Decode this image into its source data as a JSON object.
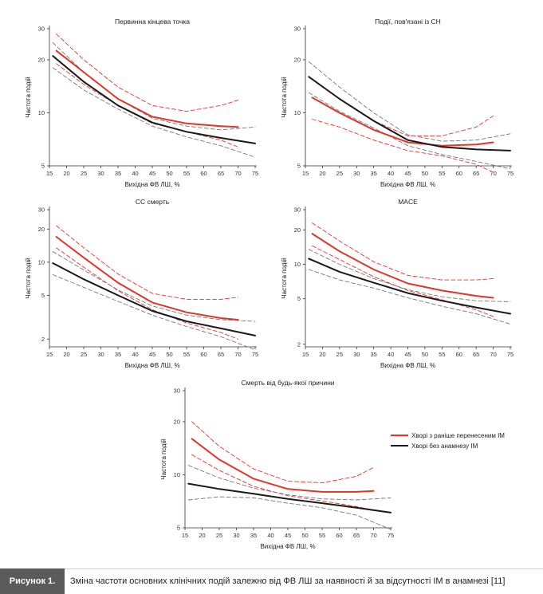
{
  "figure": {
    "label": "Рисунок 1.",
    "caption": "Зміна частоти основних клінічних подій залежно від ФВ ЛШ за наявності й за відсутності ІМ в анамнезі [11]",
    "legend": [
      {
        "label": "Хворі з раніше перенесеним ІМ",
        "color": "#e0352b"
      },
      {
        "label": "Хворі без анамнезу ІМ",
        "color": "#1a1a1a"
      }
    ]
  },
  "chart_data": [
    {
      "type": "line",
      "title": "Первинна кінцева точка",
      "xlabel": "Вихідна ФВ ЛШ, %",
      "ylabel": "Частота подій",
      "xlim": [
        15,
        75
      ],
      "ylim": [
        5,
        30
      ],
      "y_scale": "log",
      "x_ticks": [
        15,
        20,
        25,
        30,
        35,
        40,
        45,
        50,
        55,
        60,
        65,
        70,
        75
      ],
      "y_ticks": [
        5,
        10,
        20,
        30
      ],
      "series": [
        {
          "name": "Хворі з раніше перенесеним ІМ",
          "color": "#e0352b",
          "style": "solid",
          "x": [
            17,
            25,
            35,
            45,
            55,
            65,
            70
          ],
          "y": [
            22.5,
            17,
            12,
            9.5,
            8.7,
            8.4,
            8.3
          ]
        },
        {
          "color": "#e0352b",
          "style": "dashed",
          "x": [
            17,
            25,
            35,
            45,
            55,
            65,
            70
          ],
          "y": [
            28,
            20,
            14,
            11,
            10.2,
            11,
            11.8
          ]
        },
        {
          "color": "#e0352b",
          "style": "dashed",
          "x": [
            17,
            25,
            35,
            45,
            55,
            65,
            70
          ],
          "y": [
            19,
            14.5,
            11,
            8.7,
            7.8,
            7,
            6.4
          ]
        },
        {
          "name": "Хворі без анамнезу ІМ",
          "color": "#1a1a1a",
          "style": "solid",
          "x": [
            16,
            25,
            35,
            45,
            55,
            65,
            75
          ],
          "y": [
            21,
            15,
            11,
            8.8,
            7.8,
            7.2,
            6.7
          ]
        },
        {
          "color": "#777777",
          "style": "dashed",
          "x": [
            16,
            25,
            35,
            45,
            55,
            65,
            75
          ],
          "y": [
            25,
            17,
            12,
            9.3,
            8.4,
            8,
            8.3
          ]
        },
        {
          "color": "#777777",
          "style": "dashed",
          "x": [
            16,
            25,
            35,
            45,
            55,
            65,
            75
          ],
          "y": [
            18,
            13.5,
            10.5,
            8.4,
            7.3,
            6.5,
            5.6
          ]
        }
      ]
    },
    {
      "type": "line",
      "title": "Події, пов'язані із СН",
      "xlabel": "Вихідна ФВ ЛШ, %",
      "ylabel": "Частота подій",
      "xlim": [
        15,
        75
      ],
      "ylim": [
        5,
        30
      ],
      "y_scale": "log",
      "x_ticks": [
        15,
        20,
        25,
        30,
        35,
        40,
        45,
        50,
        55,
        60,
        65,
        70,
        75
      ],
      "y_ticks": [
        5,
        10,
        20,
        30
      ],
      "series": [
        {
          "name": "Хворі з раніше перенесеним ІМ",
          "color": "#e0352b",
          "style": "solid",
          "x": [
            17,
            25,
            35,
            45,
            55,
            65,
            70
          ],
          "y": [
            12.2,
            10,
            8,
            6.8,
            6.5,
            6.6,
            6.8
          ]
        },
        {
          "color": "#e0352b",
          "style": "dashed",
          "x": [
            17,
            25,
            35,
            45,
            55,
            65,
            70
          ],
          "y": [
            15.5,
            12,
            9,
            7.4,
            7.4,
            8.3,
            9.6
          ]
        },
        {
          "color": "#e0352b",
          "style": "dashed",
          "x": [
            17,
            25,
            35,
            45,
            55,
            65,
            70
          ],
          "y": [
            9.2,
            8.3,
            7,
            6.1,
            5.7,
            5.1,
            4.6
          ]
        },
        {
          "name": "Хворі без анамнезу ІМ",
          "color": "#1a1a1a",
          "style": "solid",
          "x": [
            16,
            25,
            35,
            45,
            55,
            65,
            75
          ],
          "y": [
            16,
            12,
            9,
            7,
            6.4,
            6.2,
            6.1
          ]
        },
        {
          "color": "#777777",
          "style": "dashed",
          "x": [
            16,
            25,
            35,
            45,
            55,
            65,
            75
          ],
          "y": [
            19.5,
            14,
            10,
            7.5,
            6.9,
            7.0,
            7.6
          ]
        },
        {
          "color": "#777777",
          "style": "dashed",
          "x": [
            16,
            25,
            35,
            45,
            55,
            65,
            75
          ],
          "y": [
            13,
            10.2,
            8.2,
            6.5,
            5.8,
            5.3,
            4.8
          ]
        }
      ]
    },
    {
      "type": "line",
      "title": "СС смерть",
      "xlabel": "Вихідна ФВ ЛШ, %",
      "ylabel": "Частота подій",
      "xlim": [
        15,
        75
      ],
      "ylim": [
        1.7,
        30
      ],
      "y_scale": "log",
      "x_ticks": [
        15,
        20,
        25,
        30,
        35,
        40,
        45,
        50,
        55,
        60,
        65,
        70,
        75
      ],
      "y_ticks": [
        2,
        5,
        10,
        20,
        30
      ],
      "series": [
        {
          "name": "Хворі з раніше перенесеним ІМ",
          "color": "#e0352b",
          "style": "solid",
          "x": [
            17,
            25,
            35,
            45,
            55,
            65,
            70
          ],
          "y": [
            17,
            11,
            6.5,
            4.3,
            3.5,
            3.1,
            3.0
          ]
        },
        {
          "color": "#e0352b",
          "style": "dashed",
          "x": [
            17,
            25,
            35,
            45,
            55,
            65,
            70
          ],
          "y": [
            21.5,
            13.5,
            7.8,
            5.2,
            4.6,
            4.6,
            4.8
          ]
        },
        {
          "color": "#e0352b",
          "style": "dashed",
          "x": [
            17,
            25,
            35,
            45,
            55,
            65,
            70
          ],
          "y": [
            13.5,
            9,
            5.5,
            3.7,
            2.8,
            2.3,
            2.0
          ]
        },
        {
          "name": "Хворі без анамнезу ІМ",
          "color": "#1a1a1a",
          "style": "solid",
          "x": [
            16,
            25,
            35,
            45,
            55,
            65,
            75
          ],
          "y": [
            9.8,
            7,
            5,
            3.6,
            2.9,
            2.5,
            2.15
          ]
        },
        {
          "color": "#777777",
          "style": "dashed",
          "x": [
            16,
            25,
            35,
            45,
            55,
            65,
            75
          ],
          "y": [
            12.5,
            8.5,
            5.6,
            4.0,
            3.3,
            3.0,
            2.9
          ]
        },
        {
          "color": "#777777",
          "style": "dashed",
          "x": [
            16,
            25,
            35,
            45,
            55,
            65,
            75
          ],
          "y": [
            7.7,
            5.9,
            4.4,
            3.3,
            2.6,
            2.1,
            1.6
          ]
        }
      ]
    },
    {
      "type": "line",
      "title": "MACE",
      "xlabel": "Вихідна ФВ ЛШ, %",
      "ylabel": "Частота подій",
      "xlim": [
        15,
        75
      ],
      "ylim": [
        1.9,
        30
      ],
      "y_scale": "log",
      "x_ticks": [
        15,
        20,
        25,
        30,
        35,
        40,
        45,
        50,
        55,
        60,
        65,
        70,
        75
      ],
      "y_ticks": [
        2,
        5,
        10,
        20,
        30
      ],
      "series": [
        {
          "name": "Хворі з раніше перенесеним ІМ",
          "color": "#e0352b",
          "style": "solid",
          "x": [
            17,
            25,
            35,
            45,
            55,
            65,
            70
          ],
          "y": [
            18.5,
            13,
            9,
            6.8,
            5.9,
            5.3,
            5.1
          ]
        },
        {
          "color": "#e0352b",
          "style": "dashed",
          "x": [
            17,
            25,
            35,
            45,
            55,
            65,
            70
          ],
          "y": [
            23,
            16,
            10.5,
            8.0,
            7.3,
            7.3,
            7.5
          ]
        },
        {
          "color": "#e0352b",
          "style": "dashed",
          "x": [
            17,
            25,
            35,
            45,
            55,
            65,
            70
          ],
          "y": [
            14.5,
            11,
            7.8,
            5.9,
            4.9,
            4.0,
            3.5
          ]
        },
        {
          "name": "Хворі без анамнезу ІМ",
          "color": "#1a1a1a",
          "style": "solid",
          "x": [
            16,
            25,
            35,
            45,
            55,
            65,
            75
          ],
          "y": [
            11.2,
            8.6,
            6.9,
            5.6,
            4.8,
            4.2,
            3.7
          ]
        },
        {
          "color": "#777777",
          "style": "dashed",
          "x": [
            16,
            25,
            35,
            45,
            55,
            65,
            75
          ],
          "y": [
            13.5,
            10,
            7.5,
            6.0,
            5.2,
            4.8,
            4.7
          ]
        },
        {
          "color": "#777777",
          "style": "dashed",
          "x": [
            16,
            25,
            35,
            45,
            55,
            65,
            75
          ],
          "y": [
            9,
            7.3,
            6.2,
            5.1,
            4.3,
            3.7,
            3.0
          ]
        }
      ]
    },
    {
      "type": "line",
      "title": "Смерть від будь-якої причини",
      "xlabel": "Вихідна ФВ ЛШ, %",
      "ylabel": "Частота подій",
      "xlim": [
        15,
        75
      ],
      "ylim": [
        5,
        30
      ],
      "y_scale": "log",
      "x_ticks": [
        15,
        20,
        25,
        30,
        35,
        40,
        45,
        50,
        55,
        60,
        65,
        70,
        75
      ],
      "y_ticks": [
        5,
        10,
        20,
        30
      ],
      "series": [
        {
          "name": "Хворі з раніше перенесеним ІМ",
          "color": "#e0352b",
          "style": "solid",
          "x": [
            17,
            25,
            35,
            45,
            55,
            65,
            70
          ],
          "y": [
            16,
            12.2,
            9.5,
            8.3,
            8.0,
            8.0,
            8.1
          ]
        },
        {
          "color": "#e0352b",
          "style": "dashed",
          "x": [
            17,
            25,
            35,
            45,
            55,
            65,
            70
          ],
          "y": [
            20,
            14.5,
            10.8,
            9.2,
            9.0,
            9.8,
            11.0
          ]
        },
        {
          "color": "#e0352b",
          "style": "dashed",
          "x": [
            17,
            25,
            35,
            45,
            55,
            65,
            70
          ],
          "y": [
            13,
            10.6,
            8.6,
            7.6,
            7.1,
            6.6,
            6.3
          ]
        },
        {
          "name": "Хворі без анамнезу ІМ",
          "color": "#1a1a1a",
          "style": "solid",
          "x": [
            16,
            25,
            35,
            45,
            55,
            65,
            75
          ],
          "y": [
            8.9,
            8.3,
            7.8,
            7.3,
            6.9,
            6.5,
            6.1
          ]
        },
        {
          "color": "#777777",
          "style": "dashed",
          "x": [
            16,
            25,
            35,
            45,
            55,
            65,
            75
          ],
          "y": [
            11.3,
            9.6,
            8.4,
            7.7,
            7.3,
            7.2,
            7.4
          ]
        },
        {
          "color": "#777777",
          "style": "dashed",
          "x": [
            16,
            25,
            35,
            45,
            55,
            65,
            75
          ],
          "y": [
            7.2,
            7.5,
            7.4,
            6.9,
            6.5,
            5.9,
            4.9
          ]
        }
      ]
    }
  ]
}
